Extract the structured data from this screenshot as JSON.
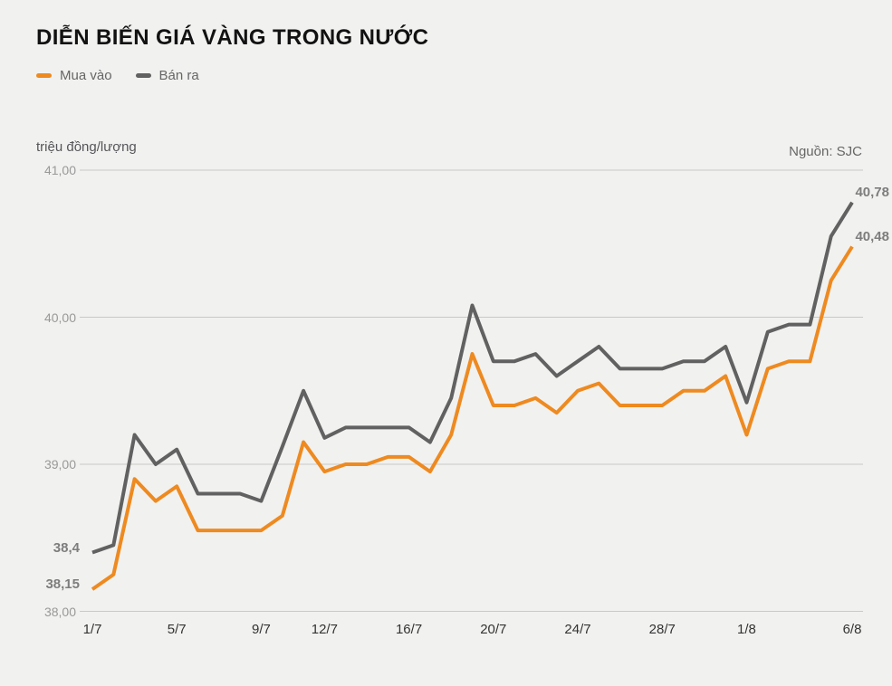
{
  "legend": [
    {
      "label": "Mua vào",
      "color_key": "buy_line"
    },
    {
      "label": "Bán ra",
      "color_key": "sell_line"
    }
  ],
  "colors": {
    "background": "#f1f1ef",
    "buy_line": "#ee8a20",
    "sell_line": "#616161",
    "gridline": "#c9c9c9",
    "y_tick_label": "#999999",
    "x_tick_label": "#333333",
    "data_label": "#7d7d7d",
    "title": "#121212",
    "legend_text": "#666666",
    "unit_label": "#56565a",
    "source_label": "#666666"
  },
  "chart_data": {
    "type": "line",
    "title": "DIỄN BIẾN GIÁ VÀNG TRONG NƯỚC",
    "ylabel": "triệu đồng/lượng",
    "source_label": "Nguồn: SJC",
    "ylim": [
      38,
      41
    ],
    "grid": true,
    "legend_position": "top-left",
    "y_ticks": [
      {
        "value": 41,
        "label": "41,00"
      },
      {
        "value": 40,
        "label": "40,00"
      },
      {
        "value": 39,
        "label": "39,00"
      },
      {
        "value": 38,
        "label": "38,00"
      }
    ],
    "x": [
      "1/7",
      "2/7",
      "3/7",
      "4/7",
      "5/7",
      "6/7",
      "7/7",
      "8/7",
      "9/7",
      "10/7",
      "11/7",
      "12/7",
      "13/7",
      "14/7",
      "15/7",
      "16/7",
      "17/7",
      "18/7",
      "19/7",
      "20/7",
      "21/7",
      "22/7",
      "23/7",
      "24/7",
      "25/7",
      "26/7",
      "27/7",
      "28/7",
      "29/7",
      "30/7",
      "31/7",
      "1/8",
      "2/8",
      "3/8",
      "4/8",
      "5/8",
      "6/8"
    ],
    "x_tick_indices": [
      0,
      4,
      8,
      11,
      15,
      19,
      23,
      27,
      31,
      36
    ],
    "x_tick_labels": [
      "1/7",
      "5/7",
      "9/7",
      "12/7",
      "16/7",
      "20/7",
      "24/7",
      "28/7",
      "1/8",
      "6/8"
    ],
    "series": [
      {
        "name": "Bán ra",
        "color_key": "sell_line",
        "first_point_label": "38,4",
        "last_point_label": "40,78",
        "values": [
          38.4,
          38.45,
          39.2,
          39.0,
          39.1,
          38.8,
          38.8,
          38.8,
          38.75,
          39.12,
          39.5,
          39.18,
          39.25,
          39.25,
          39.25,
          39.25,
          39.15,
          39.45,
          40.08,
          39.7,
          39.7,
          39.75,
          39.6,
          39.7,
          39.8,
          39.65,
          39.65,
          39.65,
          39.7,
          39.7,
          39.8,
          39.42,
          39.9,
          39.95,
          39.95,
          40.55,
          40.78
        ]
      },
      {
        "name": "Mua vào",
        "color_key": "buy_line",
        "first_point_label": "38,15",
        "last_point_label": "40,48",
        "values": [
          38.15,
          38.25,
          38.9,
          38.75,
          38.85,
          38.55,
          38.55,
          38.55,
          38.55,
          38.65,
          39.15,
          38.95,
          39.0,
          39.0,
          39.05,
          39.05,
          38.95,
          39.2,
          39.75,
          39.4,
          39.4,
          39.45,
          39.35,
          39.5,
          39.55,
          39.4,
          39.4,
          39.4,
          39.5,
          39.5,
          39.6,
          39.2,
          39.65,
          39.7,
          39.7,
          40.25,
          40.48
        ]
      }
    ]
  }
}
